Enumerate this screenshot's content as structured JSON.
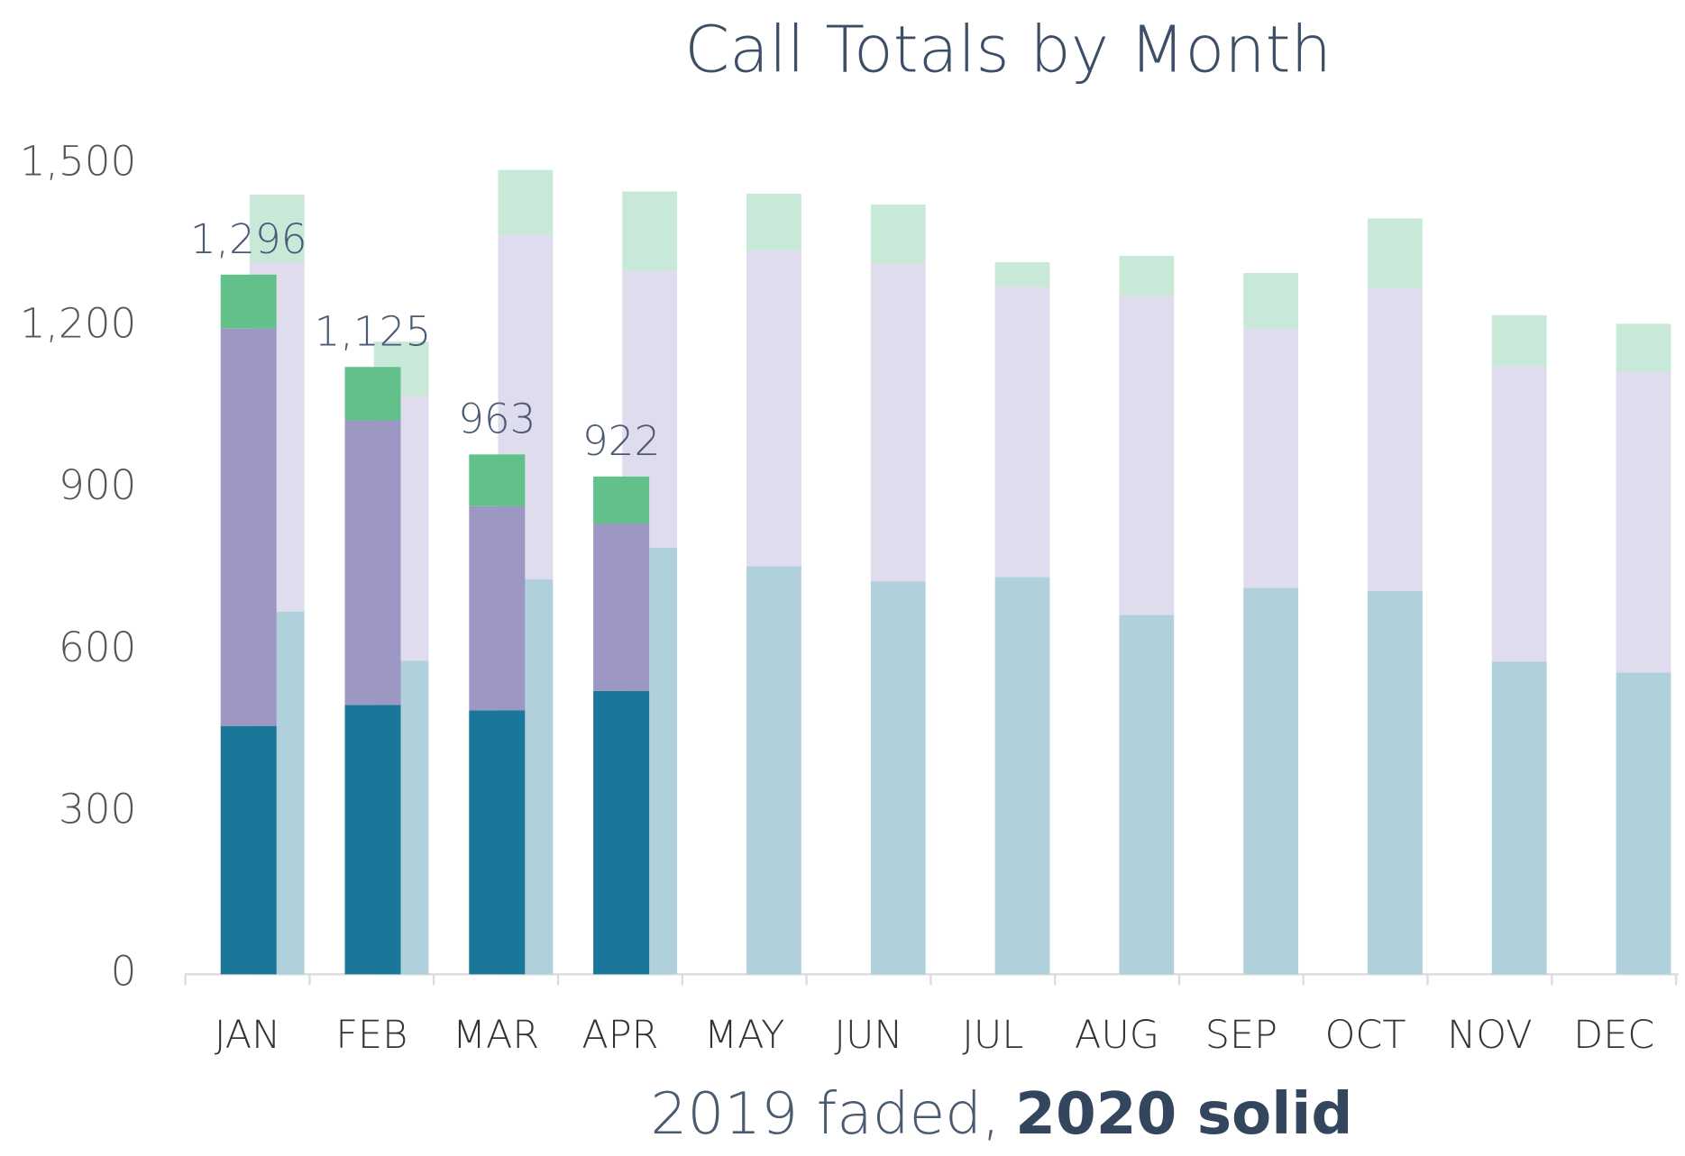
{
  "chart_data": {
    "type": "stacked_bar",
    "title": "Call Totals by Month",
    "subtitle": [
      "2019 faded,",
      "2020 solid"
    ],
    "categories": [
      "JAN",
      "FEB",
      "MAR",
      "APR",
      "MAY",
      "JUN",
      "JUL",
      "AUG",
      "SEP",
      "OCT",
      "NOV",
      "DEC"
    ],
    "ylim": [
      0,
      1500
    ],
    "yticks": [
      0,
      300,
      600,
      900,
      {
        "value": 1200,
        "label": "1,200"
      },
      {
        "value": 1500,
        "label": "1,500"
      }
    ],
    "groups": [
      {
        "series": [
          {
            "color": "#b0d0dc",
            "values": [
              672,
              581,
              732,
              790,
              756,
              728,
              736,
              666,
              716,
              710,
              579,
              559
            ]
          },
          {
            "color": "#dedced",
            "values": [
              647,
              491,
              639,
              513,
              585,
              589,
              537,
              591,
              480,
              561,
              547,
              557
            ]
          },
          {
            "color": "#c8e8d8",
            "values": [
              125,
              100,
              119,
              147,
              105,
              109,
              46,
              74,
              103,
              129,
              95,
              89
            ]
          }
        ]
      },
      {
        "series": [
          {
            "color": "#1a7799",
            "values": [
              460,
              499,
              489,
              525,
              null,
              null,
              null,
              null,
              null,
              null,
              null,
              null
            ]
          },
          {
            "color": "#9d98c3",
            "values": [
              736,
              527,
              378,
              310,
              null,
              null,
              null,
              null,
              null,
              null,
              null,
              null
            ]
          },
          {
            "color": "#62c08a",
            "values": [
              100,
              99,
              96,
              87,
              null,
              null,
              null,
              null,
              null,
              null,
              null,
              null
            ]
          }
        ],
        "totals": [
          1296,
          1125,
          963,
          922,
          null,
          null,
          null,
          null,
          null,
          null,
          null,
          null
        ],
        "total_labels": [
          "1,296",
          "1,125",
          "963",
          "922",
          null,
          null,
          null,
          null,
          null,
          null,
          null,
          null
        ]
      }
    ]
  }
}
